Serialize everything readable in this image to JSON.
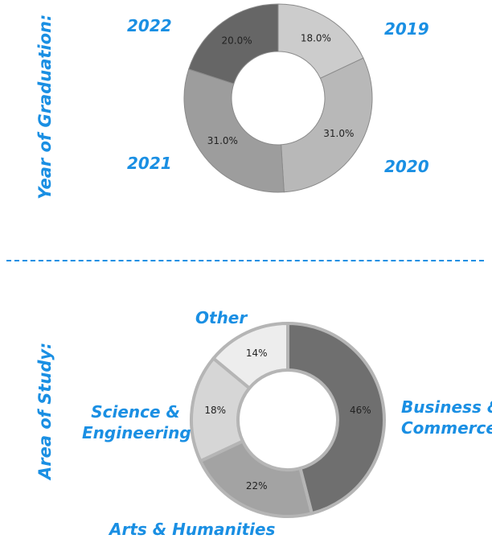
{
  "colors": {
    "accent": "#1a8fe3"
  },
  "chart_data": [
    {
      "type": "pie",
      "variant": "donut",
      "title": "Year of Graduation:",
      "categories": [
        "2019",
        "2020",
        "2021",
        "2022"
      ],
      "values": [
        18.0,
        31.0,
        31.0,
        20.0
      ],
      "value_labels": [
        "18.0%",
        "31.0%",
        "31.0%",
        "20.0%"
      ],
      "colors": [
        "#cccccc",
        "#b8b8b8",
        "#9d9d9d",
        "#666666"
      ]
    },
    {
      "type": "pie",
      "variant": "donut",
      "title": "Area of Study:",
      "categories": [
        "Business & Commerce",
        "Arts & Humanities",
        "Science & Engineering",
        "Other"
      ],
      "category_lines": [
        [
          "Business &",
          "Commerce"
        ],
        [
          "Arts & Humanities"
        ],
        [
          "Science &",
          "Engineering"
        ],
        [
          "Other"
        ]
      ],
      "values": [
        46,
        22,
        18,
        14
      ],
      "value_labels": [
        "46%",
        "22%",
        "18%",
        "14%"
      ],
      "colors": [
        "#6f6f6f",
        "#a3a3a3",
        "#d6d6d6",
        "#ededed"
      ]
    }
  ]
}
